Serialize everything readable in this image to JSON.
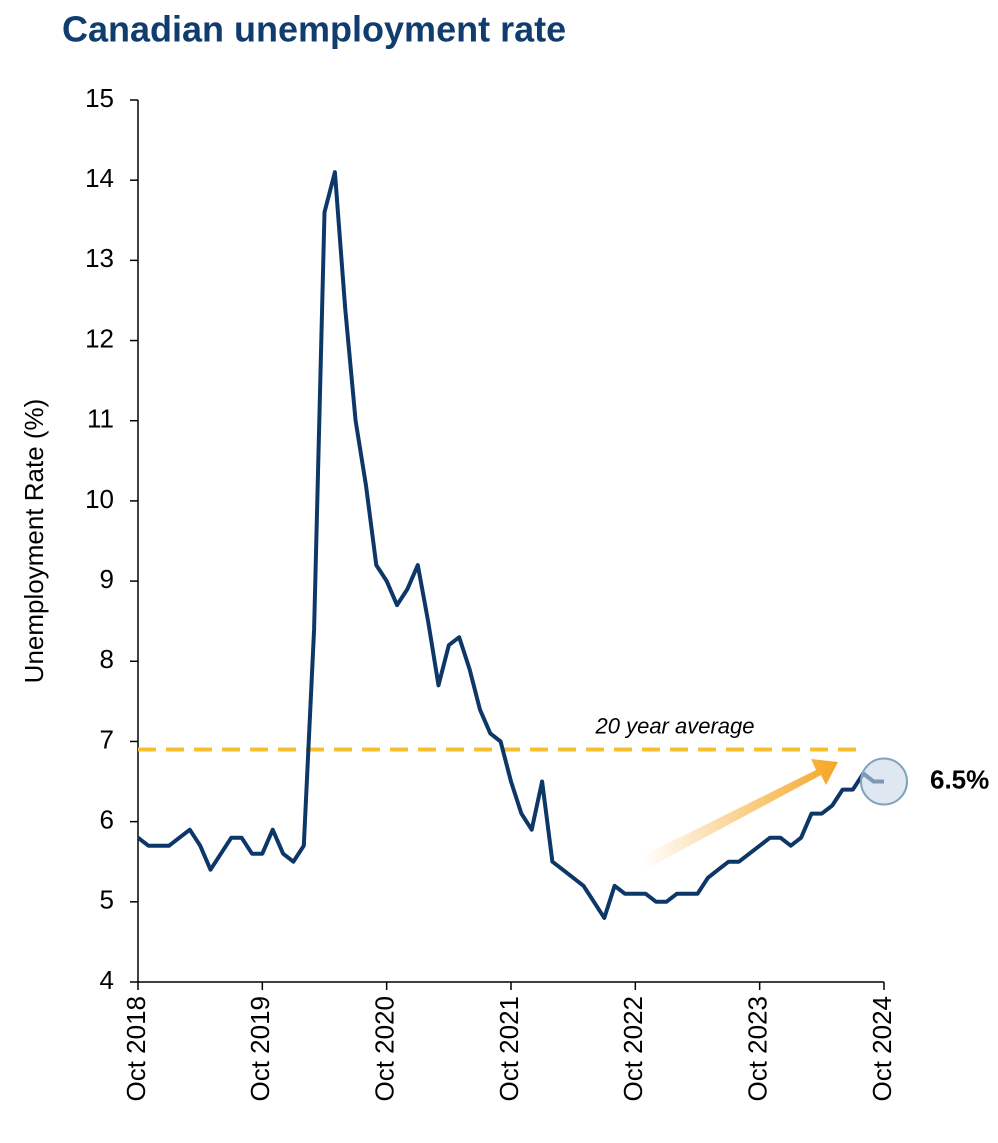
{
  "chart_data": {
    "type": "line",
    "title": "Canadian unemployment rate",
    "y_label": "Unemployment Rate (%)",
    "categories": [
      "Oct 2018",
      null,
      null,
      null,
      null,
      null,
      null,
      null,
      null,
      null,
      null,
      null,
      "Oct 2019",
      null,
      null,
      null,
      null,
      null,
      null,
      null,
      null,
      null,
      null,
      null,
      "Oct 2020",
      null,
      null,
      null,
      null,
      null,
      null,
      null,
      null,
      null,
      null,
      null,
      "Oct 2021",
      null,
      null,
      null,
      null,
      null,
      null,
      null,
      null,
      null,
      null,
      null,
      "Oct 2022",
      null,
      null,
      null,
      null,
      null,
      null,
      null,
      null,
      null,
      null,
      null,
      "Oct 2023",
      null,
      null,
      null,
      null,
      null,
      null,
      null,
      null,
      null,
      null,
      null,
      "Oct 2024"
    ],
    "values": [
      5.8,
      5.7,
      5.7,
      5.7,
      5.8,
      5.9,
      5.7,
      5.4,
      5.6,
      5.8,
      5.8,
      5.6,
      5.6,
      5.9,
      5.6,
      5.5,
      5.7,
      8.4,
      13.6,
      14.1,
      12.4,
      11.0,
      10.2,
      9.2,
      9.0,
      8.7,
      8.9,
      9.2,
      8.5,
      7.7,
      8.2,
      8.3,
      7.9,
      7.4,
      7.1,
      7.0,
      6.5,
      6.1,
      5.9,
      6.5,
      5.5,
      5.4,
      5.3,
      5.2,
      5.0,
      4.8,
      5.2,
      5.1,
      5.1,
      5.1,
      5.0,
      5.0,
      5.1,
      5.1,
      5.1,
      5.3,
      5.4,
      5.5,
      5.5,
      5.6,
      5.7,
      5.8,
      5.8,
      5.7,
      5.8,
      6.1,
      6.1,
      6.2,
      6.4,
      6.4,
      6.6,
      6.5,
      6.5
    ],
    "value_labels": [
      null,
      null,
      null,
      null,
      null,
      null,
      null,
      null,
      null,
      null,
      null,
      null,
      null,
      null,
      null,
      null,
      null,
      null,
      null,
      null,
      null,
      null,
      null,
      null,
      null,
      null,
      null,
      null,
      null,
      null,
      null,
      null,
      null,
      null,
      null,
      null,
      null,
      null,
      null,
      null,
      null,
      null,
      null,
      null,
      null,
      null,
      null,
      null,
      null,
      null,
      null,
      null,
      null,
      null,
      null,
      null,
      null,
      null,
      null,
      null,
      null,
      null,
      null,
      null,
      null,
      null,
      null,
      null,
      null,
      null,
      null,
      null,
      "6.5%"
    ],
    "color": "#0d3768",
    "ylim": [
      4,
      15
    ],
    "yticks": [
      4,
      5,
      6,
      7,
      8,
      9,
      10,
      11,
      12,
      13,
      14,
      15
    ],
    "reference_line": {
      "value": 6.9,
      "label": "20 year average",
      "color": "#f4c030"
    }
  }
}
